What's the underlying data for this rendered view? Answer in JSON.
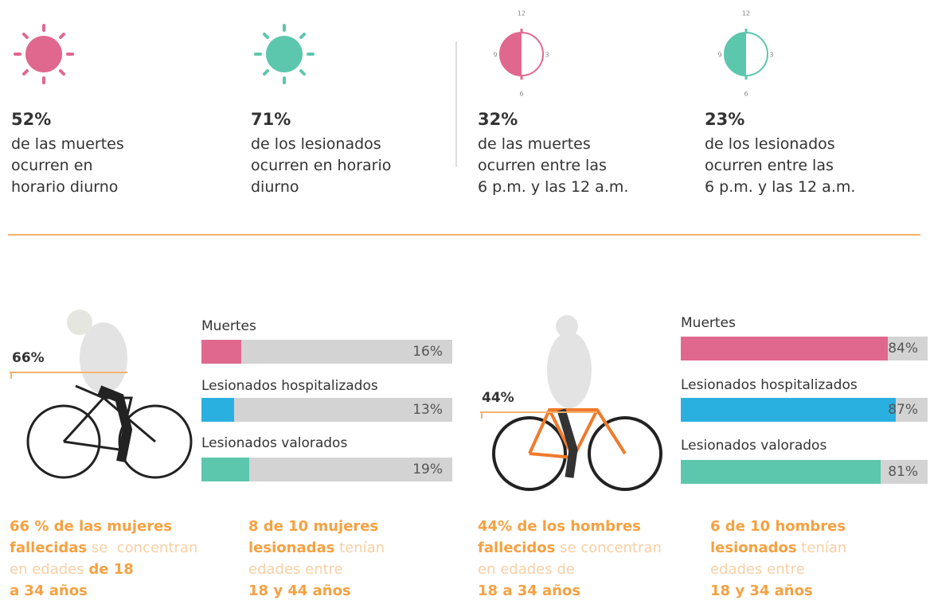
{
  "stats": [
    {
      "value": "52%",
      "lines": [
        "de las muertes",
        "ocurren en",
        "horario diurno"
      ]
    },
    {
      "value": "71%",
      "lines": [
        "de los lesionados",
        "ocurren en horario",
        "diurno"
      ]
    },
    {
      "value": "32%",
      "lines": [
        "de las muertes",
        "ocurren entre las",
        "6 p.m. y las 12 a.m."
      ]
    },
    {
      "value": "23%",
      "lines": [
        "de los lesionados",
        "ocurren entre las",
        "6 p.m. y las 12 a.m."
      ]
    }
  ],
  "clock_labels": [
    "12",
    "3",
    "6",
    "9"
  ],
  "groups": [
    {
      "callout": "66%",
      "bars": [
        {
          "label": "Muertes",
          "value": 16,
          "value_label": "16%",
          "color": "#e0688e"
        },
        {
          "label": "Lesionados hospitalizados",
          "value": 13,
          "value_label": "13%",
          "color": "#2ab0e0"
        },
        {
          "label": "Lesionados valorados",
          "value": 19,
          "value_label": "19%",
          "color": "#5cc7ad"
        }
      ]
    },
    {
      "callout": "44%",
      "bars": [
        {
          "label": "Muertes",
          "value": 84,
          "value_label": "84%",
          "color": "#e0688e"
        },
        {
          "label": "Lesionados hospitalizados",
          "value": 87,
          "value_label": "87%",
          "color": "#2ab0e0"
        },
        {
          "label": "Lesionados valorados",
          "value": 81,
          "value_label": "81%",
          "color": "#5cc7ad"
        }
      ]
    }
  ],
  "notes": [
    [
      [
        {
          "text": "66 % de las mujeres",
          "bold": true
        }
      ],
      [
        {
          "text": "fallecidas",
          "bold": true
        },
        {
          "text": " se  concentran",
          "bold": false
        }
      ],
      [
        {
          "text": "en edades ",
          "bold": false
        },
        {
          "text": "de 18",
          "bold": true
        }
      ],
      [
        {
          "text": "a 34 años",
          "bold": true
        }
      ]
    ],
    [
      [
        {
          "text": "8 de 10 mujeres",
          "bold": true
        }
      ],
      [
        {
          "text": "lesionadas",
          "bold": true
        },
        {
          "text": " tenían",
          "bold": false
        }
      ],
      [
        {
          "text": "edades entre",
          "bold": false
        }
      ],
      [
        {
          "text": "18 y 44 años",
          "bold": true
        }
      ]
    ],
    [
      [
        {
          "text": "44% de los hombres",
          "bold": true
        }
      ],
      [
        {
          "text": "fallecidos",
          "bold": true
        },
        {
          "text": " se concentran",
          "bold": false
        }
      ],
      [
        {
          "text": "en edades de",
          "bold": false
        }
      ],
      [
        {
          "text": "18 a 34 años",
          "bold": true
        }
      ]
    ],
    [
      [
        {
          "text": "6 de 10 hombres",
          "bold": true
        }
      ],
      [
        {
          "text": "lesionados",
          "bold": true
        },
        {
          "text": " tenían",
          "bold": false
        }
      ],
      [
        {
          "text": "edades entre",
          "bold": false
        }
      ],
      [
        {
          "text": "18 y 34 años",
          "bold": true
        }
      ]
    ]
  ]
}
